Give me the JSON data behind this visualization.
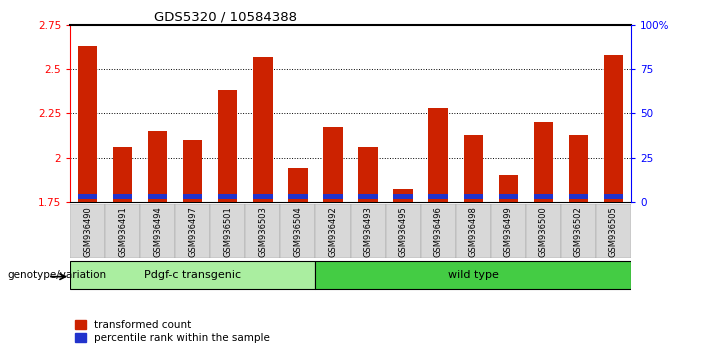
{
  "title": "GDS5320 / 10584388",
  "samples": [
    "GSM936490",
    "GSM936491",
    "GSM936494",
    "GSM936497",
    "GSM936501",
    "GSM936503",
    "GSM936504",
    "GSM936492",
    "GSM936493",
    "GSM936495",
    "GSM936496",
    "GSM936498",
    "GSM936499",
    "GSM936500",
    "GSM936502",
    "GSM936505"
  ],
  "red_values": [
    2.63,
    2.06,
    2.15,
    2.1,
    2.38,
    2.57,
    1.94,
    2.17,
    2.06,
    1.82,
    2.28,
    2.13,
    1.9,
    2.2,
    2.13,
    2.58
  ],
  "blue_percentile": [
    10,
    9,
    8,
    8,
    10,
    8,
    8,
    9,
    8,
    8,
    9,
    9,
    7,
    8,
    8,
    10
  ],
  "ymin": 1.75,
  "ymax": 2.75,
  "yticks": [
    1.75,
    2.0,
    2.25,
    2.5,
    2.75
  ],
  "right_yticks": [
    0,
    25,
    50,
    75,
    100
  ],
  "right_ytick_labels": [
    "0",
    "25",
    "50",
    "75",
    "100%"
  ],
  "groups": [
    {
      "label": "Pdgf-c transgenic",
      "start": 0,
      "end": 6
    },
    {
      "label": "wild type",
      "start": 7,
      "end": 15
    }
  ],
  "bar_color_red": "#cc2200",
  "bar_color_blue": "#2233cc",
  "bar_width": 0.55,
  "genotype_label": "genotype/variation",
  "legend_red": "transformed count",
  "legend_blue": "percentile rank within the sample",
  "group0_color": "#aaeea0",
  "group1_color": "#44cc44"
}
